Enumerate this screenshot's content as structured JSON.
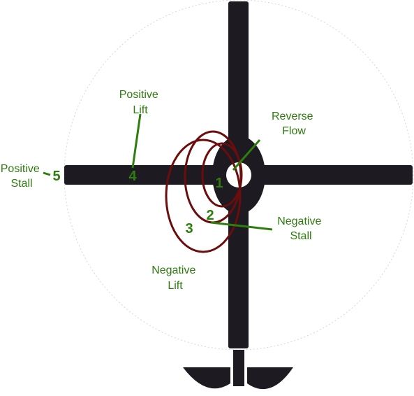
{
  "labels": {
    "reverse_flow": [
      "Reverse",
      "Flow"
    ],
    "negative_stall": [
      "Negative",
      "Stall"
    ],
    "negative_lift": [
      "Negative",
      "Lift"
    ],
    "positive_lift": [
      "Positive",
      "Lift"
    ],
    "positive_stall": [
      "Positive",
      "Stall"
    ]
  },
  "regions": [
    "1",
    "2",
    "3",
    "4",
    "5"
  ],
  "colors": {
    "blade": "#1e1a22",
    "label": "#2e7d0f",
    "rings": "#6b0d0d",
    "disk_outline": "#d0d0d0"
  }
}
